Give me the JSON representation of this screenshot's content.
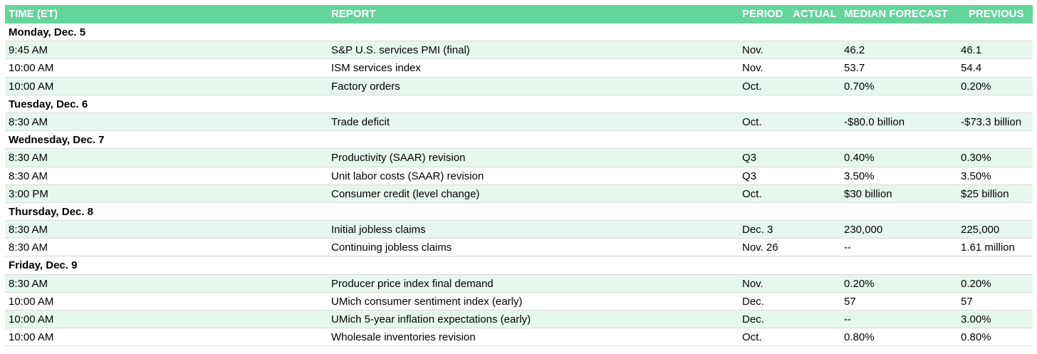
{
  "headers": {
    "time": "TIME (ET)",
    "report": "REPORT",
    "period": "PERIOD",
    "actual": "ACTUAL",
    "median": "MEDIAN FORECAST",
    "previous": "PREVIOUS"
  },
  "rows": [
    {
      "type": "day",
      "label": "Monday, Dec. 5"
    },
    {
      "type": "data",
      "time": "9:45 AM",
      "report": "S&P U.S. services PMI (final)",
      "period": "Nov.",
      "actual": "",
      "median": "46.2",
      "previous": "46.1"
    },
    {
      "type": "data",
      "time": "10:00 AM",
      "report": "ISM services index",
      "period": "Nov.",
      "actual": "",
      "median": "53.7",
      "previous": "54.4"
    },
    {
      "type": "data",
      "time": "10:00 AM",
      "report": "Factory orders",
      "period": "Oct.",
      "actual": "",
      "median": "0.70%",
      "previous": "0.20%"
    },
    {
      "type": "day",
      "label": "Tuesday, Dec. 6"
    },
    {
      "type": "data",
      "time": "8:30 AM",
      "report": "Trade deficit",
      "period": "Oct.",
      "actual": "",
      "median": "-$80.0 billion",
      "previous": "-$73.3 billion"
    },
    {
      "type": "day",
      "label": "Wednesday, Dec. 7"
    },
    {
      "type": "data",
      "time": "8:30 AM",
      "report": "Productivity (SAAR) revision",
      "period": "Q3",
      "actual": "",
      "median": "0.40%",
      "previous": "0.30%"
    },
    {
      "type": "data",
      "time": "8:30 AM",
      "report": "Unit labor costs (SAAR) revision",
      "period": "Q3",
      "actual": "",
      "median": "3.50%",
      "previous": "3.50%"
    },
    {
      "type": "data",
      "time": "3:00 PM",
      "report": "Consumer credit (level change)",
      "period": "Oct.",
      "actual": "",
      "median": "$30 billion",
      "previous": "$25 billion"
    },
    {
      "type": "day",
      "label": "Thursday, Dec. 8"
    },
    {
      "type": "data",
      "time": "8:30 AM",
      "report": "Initial jobless claims",
      "period": "Dec. 3",
      "actual": "",
      "median": "230,000",
      "previous": "225,000"
    },
    {
      "type": "data",
      "time": "8:30 AM",
      "report": "Continuing jobless claims",
      "period": "Nov. 26",
      "actual": "",
      "median": "--",
      "previous": "1.61 million"
    },
    {
      "type": "day",
      "label": "Friday, Dec. 9"
    },
    {
      "type": "data",
      "time": "8:30 AM",
      "report": "Producer price index final demand",
      "period": "Nov.",
      "actual": "",
      "median": "0.20%",
      "previous": "0.20%"
    },
    {
      "type": "data",
      "time": "10:00 AM",
      "report": "UMich consumer sentiment index (early)",
      "period": "Dec.",
      "actual": "",
      "median": "57",
      "previous": "57"
    },
    {
      "type": "data",
      "time": "10:00 AM",
      "report": "UMich 5-year inflation expectations (early)",
      "period": "Dec.",
      "actual": "",
      "median": "--",
      "previous": "3.00%"
    },
    {
      "type": "data",
      "time": "10:00 AM",
      "report": "Wholesale inventories revision",
      "period": "Oct.",
      "actual": "",
      "median": "0.80%",
      "previous": "0.80%"
    }
  ]
}
